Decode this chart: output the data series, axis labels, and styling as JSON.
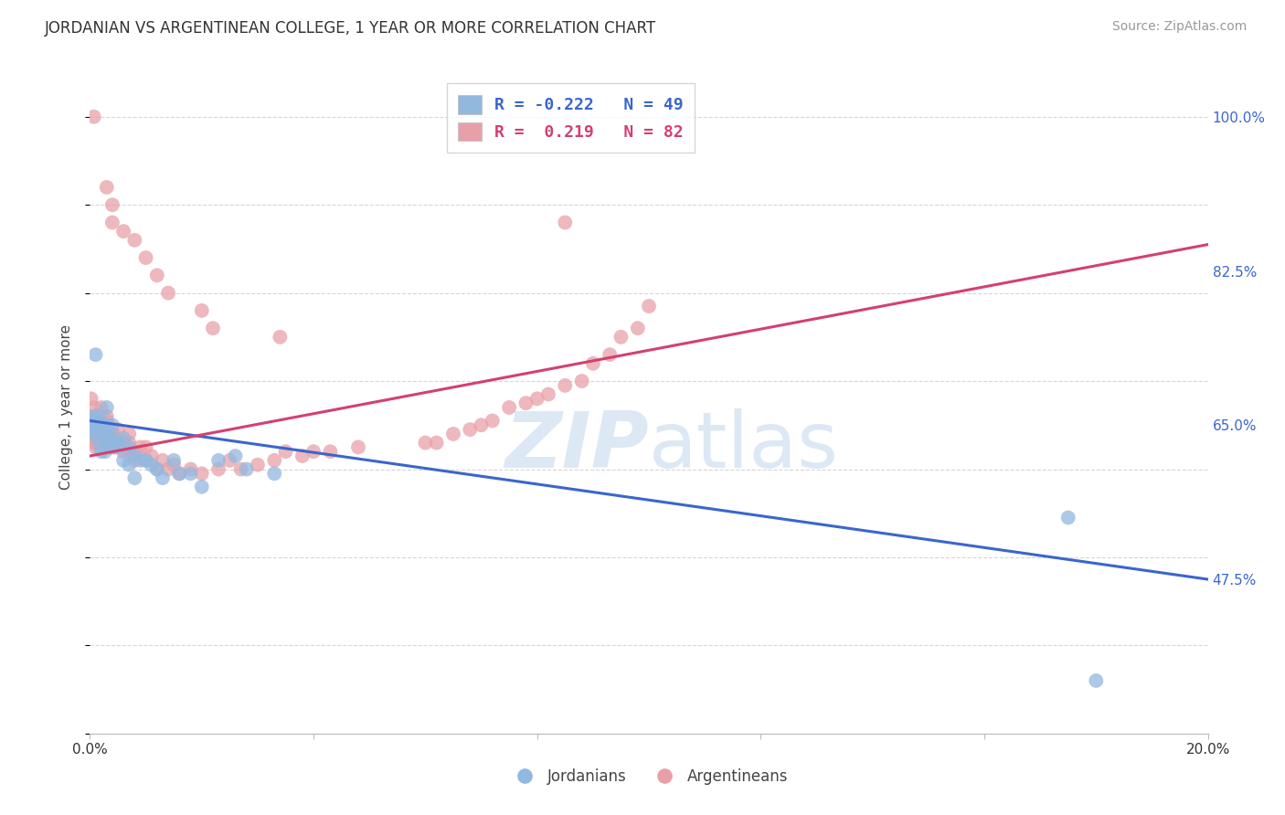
{
  "title": "JORDANIAN VS ARGENTINEAN COLLEGE, 1 YEAR OR MORE CORRELATION CHART",
  "source": "Source: ZipAtlas.com",
  "xlabel_jordanians": "Jordanians",
  "xlabel_argentineans": "Argentineans",
  "ylabel": "College, 1 year or more",
  "xlim": [
    0.0,
    0.2
  ],
  "ylim": [
    0.3,
    1.04
  ],
  "ytick_right": [
    1.0,
    0.825,
    0.65,
    0.475
  ],
  "ytick_right_labels": [
    "100.0%",
    "82.5%",
    "65.0%",
    "47.5%"
  ],
  "legend_blue_r": "R = -0.222",
  "legend_blue_n": "N = 49",
  "legend_pink_r": "R =  0.219",
  "legend_pink_n": "N = 82",
  "blue_color": "#92b8e0",
  "pink_color": "#e8a0a8",
  "blue_line_color": "#3a66cc",
  "pink_line_color": "#d44070",
  "legend_r_color": "#3a66cc",
  "legend_r2_color": "#d44070",
  "watermark_color": "#dde8f5",
  "background_color": "#ffffff",
  "grid_color": "#cccccc",
  "blue_trend_x": [
    0.0,
    0.2
  ],
  "blue_trend_y": [
    0.655,
    0.475
  ],
  "pink_trend_x": [
    0.0,
    0.2
  ],
  "pink_trend_y": [
    0.615,
    0.855
  ],
  "blue_scatter_x": [
    0.0003,
    0.0005,
    0.0007,
    0.0008,
    0.001,
    0.001,
    0.0012,
    0.0013,
    0.0015,
    0.0015,
    0.0017,
    0.002,
    0.002,
    0.002,
    0.0022,
    0.0025,
    0.0027,
    0.003,
    0.003,
    0.003,
    0.0032,
    0.0035,
    0.004,
    0.004,
    0.004,
    0.0042,
    0.005,
    0.005,
    0.006,
    0.006,
    0.007,
    0.007,
    0.008,
    0.008,
    0.009,
    0.01,
    0.011,
    0.012,
    0.013,
    0.015,
    0.016,
    0.018,
    0.02,
    0.023,
    0.026,
    0.028,
    0.033,
    0.175,
    0.18
  ],
  "blue_scatter_y": [
    0.65,
    0.655,
    0.66,
    0.64,
    0.73,
    0.65,
    0.65,
    0.64,
    0.655,
    0.66,
    0.63,
    0.65,
    0.64,
    0.62,
    0.65,
    0.64,
    0.62,
    0.67,
    0.65,
    0.63,
    0.64,
    0.63,
    0.65,
    0.635,
    0.625,
    0.63,
    0.63,
    0.625,
    0.635,
    0.61,
    0.625,
    0.605,
    0.615,
    0.59,
    0.61,
    0.61,
    0.605,
    0.6,
    0.59,
    0.61,
    0.595,
    0.595,
    0.58,
    0.61,
    0.615,
    0.6,
    0.595,
    0.545,
    0.36
  ],
  "pink_scatter_x": [
    0.0002,
    0.0003,
    0.0005,
    0.0006,
    0.0007,
    0.0008,
    0.001,
    0.001,
    0.001,
    0.0012,
    0.0013,
    0.0015,
    0.0015,
    0.0017,
    0.002,
    0.002,
    0.002,
    0.0022,
    0.0023,
    0.0025,
    0.0027,
    0.003,
    0.003,
    0.003,
    0.0032,
    0.0033,
    0.0035,
    0.004,
    0.004,
    0.004,
    0.0042,
    0.0043,
    0.0045,
    0.005,
    0.005,
    0.005,
    0.006,
    0.006,
    0.007,
    0.007,
    0.007,
    0.008,
    0.008,
    0.009,
    0.01,
    0.01,
    0.011,
    0.012,
    0.013,
    0.014,
    0.015,
    0.016,
    0.018,
    0.02,
    0.023,
    0.025,
    0.027,
    0.03,
    0.033,
    0.035,
    0.038,
    0.04,
    0.043,
    0.048,
    0.06,
    0.062,
    0.065,
    0.068,
    0.07,
    0.072,
    0.075,
    0.078,
    0.08,
    0.082,
    0.085,
    0.088,
    0.09,
    0.093,
    0.095,
    0.098,
    0.1
  ],
  "pink_scatter_y": [
    0.68,
    0.66,
    0.65,
    0.63,
    0.67,
    0.65,
    0.64,
    0.63,
    0.625,
    0.64,
    0.635,
    0.645,
    0.65,
    0.64,
    0.67,
    0.655,
    0.645,
    0.64,
    0.63,
    0.64,
    0.625,
    0.66,
    0.655,
    0.64,
    0.65,
    0.635,
    0.625,
    0.63,
    0.64,
    0.625,
    0.64,
    0.63,
    0.625,
    0.63,
    0.645,
    0.625,
    0.63,
    0.62,
    0.64,
    0.63,
    0.62,
    0.62,
    0.61,
    0.625,
    0.625,
    0.61,
    0.615,
    0.6,
    0.61,
    0.6,
    0.605,
    0.595,
    0.6,
    0.595,
    0.6,
    0.61,
    0.6,
    0.605,
    0.61,
    0.62,
    0.615,
    0.62,
    0.62,
    0.625,
    0.63,
    0.63,
    0.64,
    0.645,
    0.65,
    0.655,
    0.67,
    0.675,
    0.68,
    0.685,
    0.695,
    0.7,
    0.72,
    0.73,
    0.75,
    0.76,
    0.785
  ],
  "pink_high_x": [
    0.0007,
    0.003,
    0.004,
    0.004,
    0.006,
    0.008,
    0.01,
    0.012,
    0.014,
    0.02,
    0.022,
    0.034,
    0.085
  ],
  "pink_high_y": [
    1.0,
    0.92,
    0.9,
    0.88,
    0.87,
    0.86,
    0.84,
    0.82,
    0.8,
    0.78,
    0.76,
    0.75,
    0.88
  ]
}
